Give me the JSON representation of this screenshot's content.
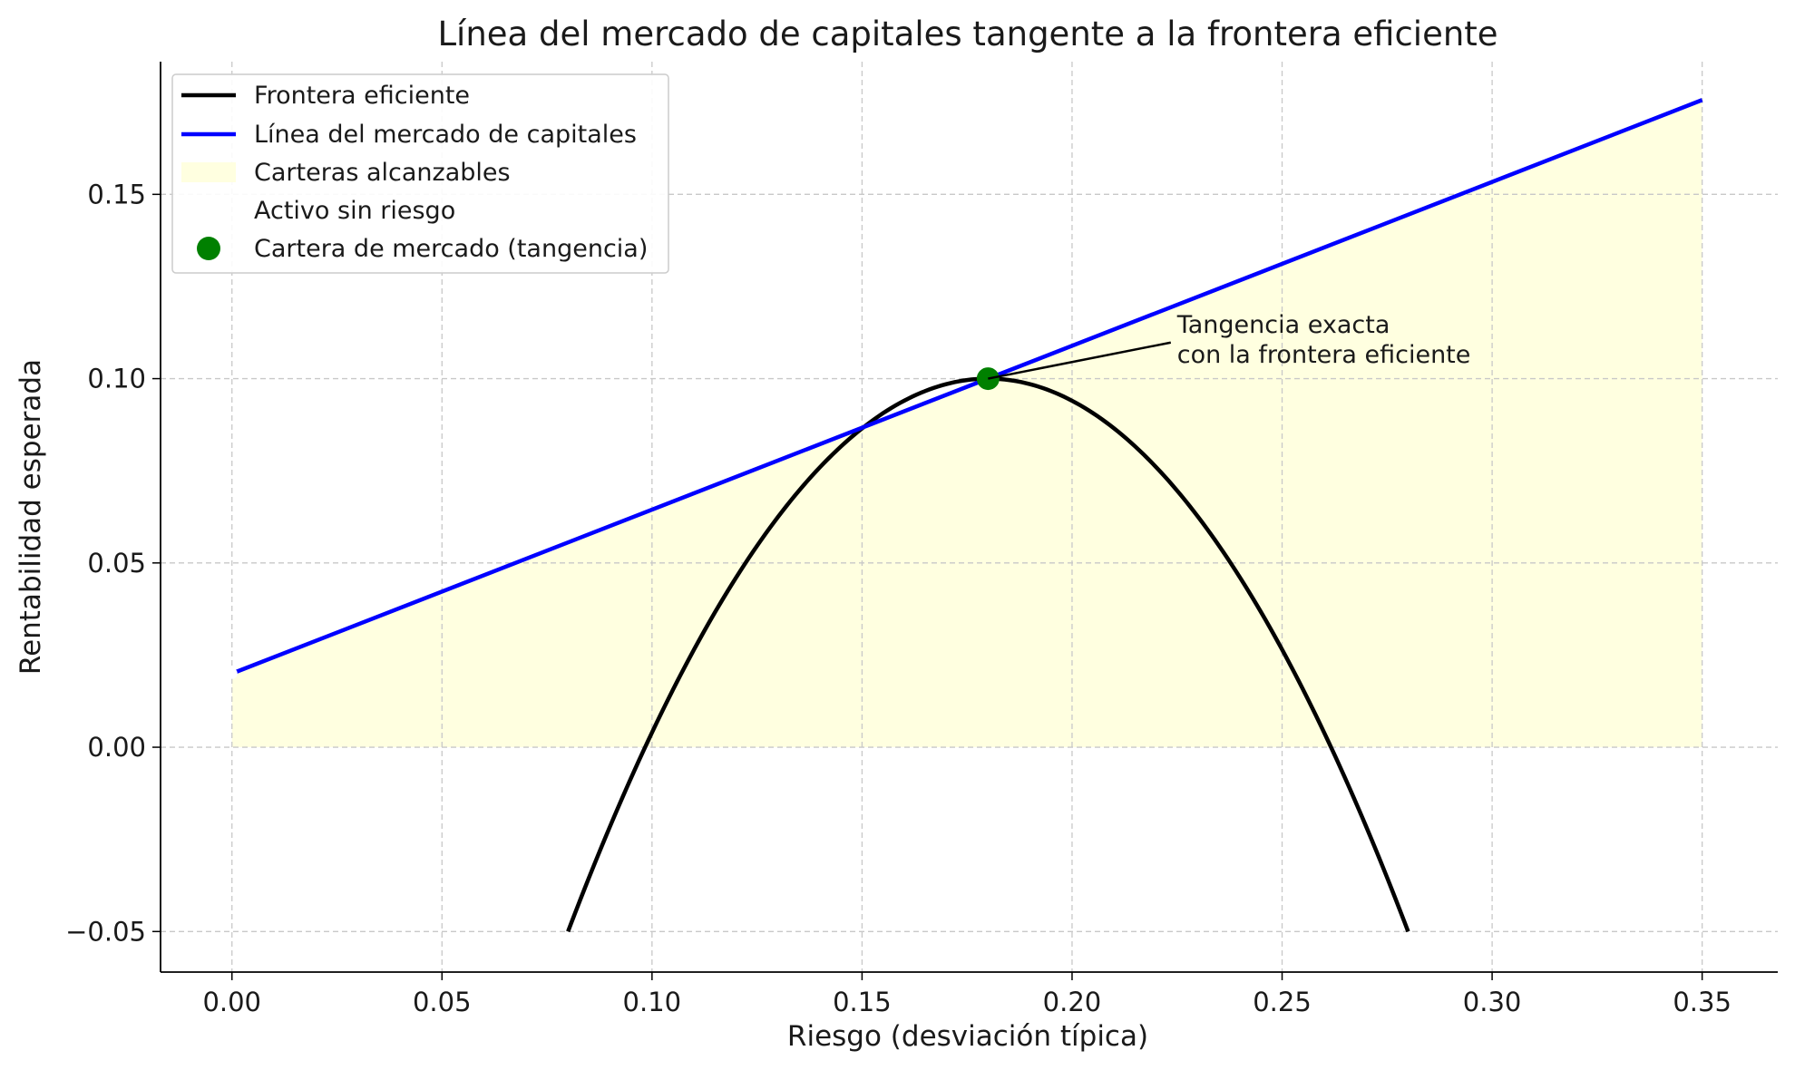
{
  "chart_data": {
    "type": "line",
    "title": "Línea del mercado de capitales tangente a la frontera eficiente",
    "xlabel": "Riesgo (desviación típica)",
    "ylabel": "Rentabilidad esperada",
    "xlim": [
      -0.017,
      0.368
    ],
    "ylim": [
      -0.061,
      0.186
    ],
    "xticks": [
      0.0,
      0.05,
      0.1,
      0.15,
      0.2,
      0.25,
      0.3,
      0.35
    ],
    "xtick_labels": [
      "0.00",
      "0.05",
      "0.10",
      "0.15",
      "0.20",
      "0.25",
      "0.30",
      "0.35"
    ],
    "yticks": [
      -0.05,
      0.0,
      0.05,
      0.1,
      0.15
    ],
    "ytick_labels": [
      "−0.05",
      "0.00",
      "0.05",
      "0.10",
      "0.15"
    ],
    "grid": true,
    "legend_position": "top-left",
    "series": [
      {
        "name": "Frontera eficiente",
        "kind": "curve",
        "color": "#000000",
        "x_range": [
          0.08,
          0.28
        ],
        "vertex": [
          0.18,
          0.1
        ],
        "y_at_ends": -0.05
      },
      {
        "name": "Línea del mercado de capitales",
        "kind": "line",
        "color": "#0000ff",
        "x": [
          0.0,
          0.35
        ],
        "y": [
          0.02,
          0.1756
        ]
      },
      {
        "name": "Carteras alcanzables",
        "kind": "fill",
        "color": "#ffffe0",
        "x_range": [
          0.0,
          0.35
        ]
      },
      {
        "name": "Activo sin riesgo",
        "kind": "point",
        "color": "#ffffff",
        "x": [
          0.0
        ],
        "y": [
          0.02
        ]
      },
      {
        "name": "Cartera de mercado (tangencia)",
        "kind": "point",
        "color": "#008000",
        "x": [
          0.18
        ],
        "y": [
          0.1
        ]
      }
    ],
    "annotation": {
      "lines": [
        "Tangencia exacta",
        "con la frontera eficiente"
      ],
      "point": [
        0.18,
        0.1
      ],
      "text_at": [
        0.225,
        0.11
      ]
    }
  }
}
